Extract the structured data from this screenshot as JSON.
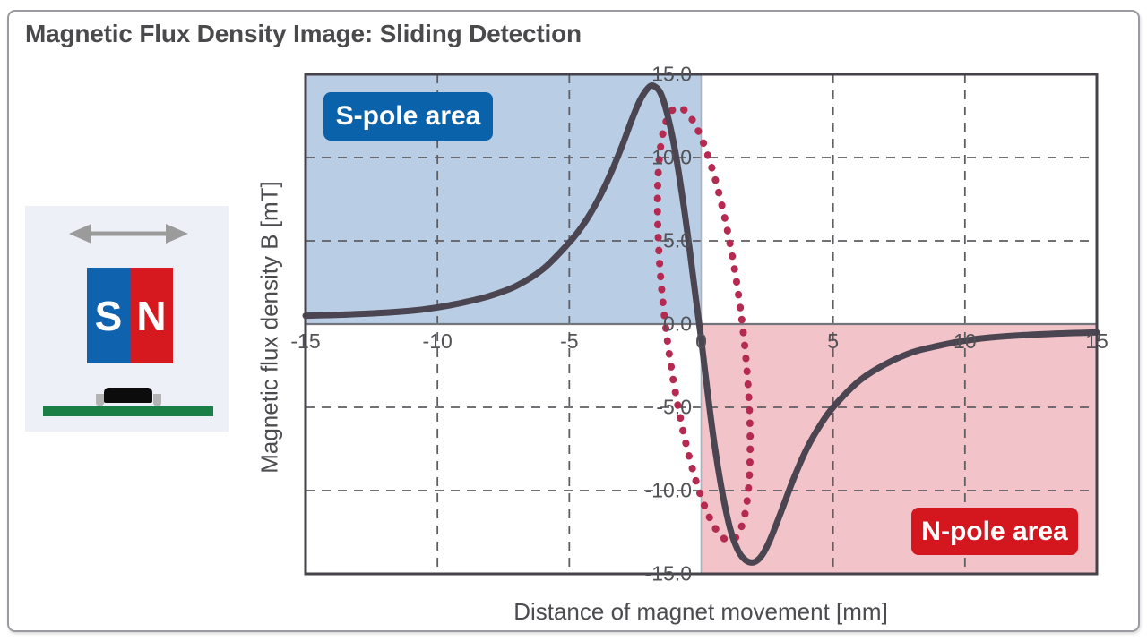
{
  "window": {
    "title": "Magnetic Flux Density Image: Sliding Detection"
  },
  "illustration": {
    "arrow_icon": "double-headed-arrow",
    "magnet_s_label": "S",
    "magnet_n_label": "N",
    "colors": {
      "s_blue": "#0f62ae",
      "n_red": "#d6191f",
      "board_green": "#1a7f44",
      "chip_black": "#0c0c0c",
      "arrow_gray": "#9b9b9b",
      "panel_bg": "#edf1f7"
    }
  },
  "chart_data": {
    "type": "line",
    "title": "Magnetic Flux Density Image: Sliding Detection",
    "xlabel": "Distance of magnet movement [mm]",
    "ylabel": "Magnetic flux density B [mT]",
    "xlim": [
      -15,
      15
    ],
    "ylim": [
      -15,
      15
    ],
    "x_ticks": {
      "values": [
        -15,
        -10,
        -5,
        0,
        5,
        10,
        15
      ],
      "labels": [
        "-15",
        "-10",
        "-5",
        "0",
        "5",
        "10",
        "15"
      ]
    },
    "y_ticks": {
      "values": [
        15,
        10,
        5,
        0,
        -5,
        -10,
        -15
      ],
      "labels": [
        "15.0",
        "10.0",
        "5.0",
        "0.0",
        "-5.0",
        "-10.0",
        "-15.0"
      ]
    },
    "grid": {
      "x_values": [
        -10,
        -5,
        5,
        10
      ],
      "y_values": [
        -10,
        -5,
        5,
        10
      ],
      "style": "dashed",
      "color": "#5f5f63"
    },
    "zero_axes": {
      "vertical_color": "#a9b1ba",
      "horizontal_color": "#74747c"
    },
    "frame_color": "#46424a",
    "tick_label_color": "#515156",
    "regions": [
      {
        "name": "s-pole-area",
        "label": "S-pole area",
        "x": [
          -15,
          0
        ],
        "y": [
          0,
          15
        ],
        "fill": "#b9cee5",
        "badge_color": "#0a62ab",
        "text_color": "#ffffff"
      },
      {
        "name": "n-pole-area",
        "label": "N-pole area",
        "x": [
          0,
          15
        ],
        "y": [
          -15,
          0
        ],
        "fill": "#f2c3c9",
        "badge_color": "#d4161f",
        "text_color": "#ffffff"
      }
    ],
    "series": [
      {
        "name": "Magnetic flux density B",
        "color": "#4a4550",
        "width": 7,
        "points": [
          [
            -15,
            0.5
          ],
          [
            -13,
            0.6
          ],
          [
            -11,
            0.8
          ],
          [
            -10,
            1.0
          ],
          [
            -9,
            1.3
          ],
          [
            -8,
            1.7
          ],
          [
            -7,
            2.3
          ],
          [
            -6,
            3.3
          ],
          [
            -5,
            4.9
          ],
          [
            -4.5,
            5.9
          ],
          [
            -4,
            7.2
          ],
          [
            -3.5,
            8.8
          ],
          [
            -3,
            10.7
          ],
          [
            -2.6,
            12.4
          ],
          [
            -2.3,
            13.5
          ],
          [
            -2,
            14.2
          ],
          [
            -1.8,
            14.3
          ],
          [
            -1.55,
            13.9
          ],
          [
            -1.3,
            12.7
          ],
          [
            -1,
            10.5
          ],
          [
            -0.7,
            7.5
          ],
          [
            -0.45,
            4.6
          ],
          [
            -0.2,
            1.5
          ],
          [
            0,
            -0.9
          ],
          [
            0.25,
            -4.2
          ],
          [
            0.5,
            -7.2
          ],
          [
            0.8,
            -10.1
          ],
          [
            1.1,
            -12.3
          ],
          [
            1.4,
            -13.6
          ],
          [
            1.7,
            -14.2
          ],
          [
            2,
            -14.3
          ],
          [
            2.3,
            -13.9
          ],
          [
            2.6,
            -13.0
          ],
          [
            3,
            -11.4
          ],
          [
            3.5,
            -9.3
          ],
          [
            4,
            -7.5
          ],
          [
            4.5,
            -6.1
          ],
          [
            5,
            -5.0
          ],
          [
            6,
            -3.4
          ],
          [
            7,
            -2.4
          ],
          [
            8,
            -1.7
          ],
          [
            9,
            -1.3
          ],
          [
            10,
            -1.0
          ],
          [
            11,
            -0.8
          ],
          [
            13,
            -0.6
          ],
          [
            15,
            -0.5
          ]
        ]
      }
    ],
    "annotations": [
      {
        "type": "ellipse",
        "cx": 0.1,
        "cy": 0,
        "rx": 1.45,
        "ry": 13.1,
        "rotate_deg": -7,
        "color": "#b52a50",
        "style": "dotted"
      }
    ]
  }
}
